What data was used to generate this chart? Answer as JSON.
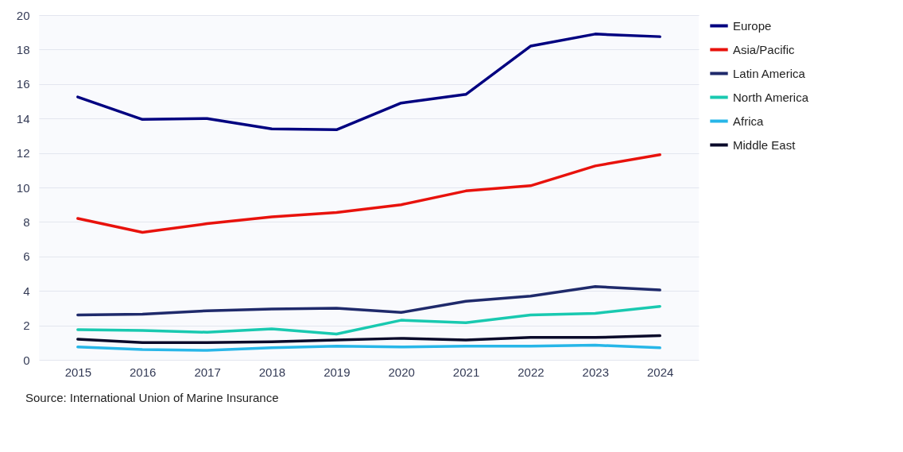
{
  "chart_data": {
    "type": "line",
    "categories": [
      "2015",
      "2016",
      "2017",
      "2018",
      "2019",
      "2020",
      "2021",
      "2022",
      "2023",
      "2024"
    ],
    "series": [
      {
        "name": "Europe",
        "color": "#000080",
        "values": [
          15.25,
          13.95,
          14.0,
          13.4,
          13.35,
          14.9,
          15.4,
          18.2,
          18.9,
          18.75
        ]
      },
      {
        "name": "Asia/Pacific",
        "color": "#e8120c",
        "values": [
          8.2,
          7.4,
          7.9,
          8.3,
          8.55,
          9.0,
          9.8,
          10.1,
          11.25,
          11.9
        ]
      },
      {
        "name": "Latin America",
        "color": "#1f2a6b",
        "values": [
          2.6,
          2.65,
          2.85,
          2.95,
          3.0,
          2.75,
          3.4,
          3.7,
          4.25,
          4.05
        ]
      },
      {
        "name": "North America",
        "color": "#19c9b0",
        "values": [
          1.75,
          1.7,
          1.6,
          1.8,
          1.5,
          2.3,
          2.15,
          2.6,
          2.7,
          3.1
        ]
      },
      {
        "name": "Africa",
        "color": "#27b6e8",
        "values": [
          0.75,
          0.6,
          0.55,
          0.7,
          0.8,
          0.75,
          0.8,
          0.8,
          0.85,
          0.7
        ]
      },
      {
        "name": "Middle East",
        "color": "#0a0a2a",
        "values": [
          1.2,
          1.0,
          1.0,
          1.05,
          1.15,
          1.25,
          1.15,
          1.3,
          1.3,
          1.4
        ]
      }
    ],
    "ylim": [
      0,
      20
    ],
    "yticks": [
      0,
      2,
      4,
      6,
      8,
      10,
      12,
      14,
      16,
      18,
      20
    ],
    "grid": "y",
    "legend": "right",
    "annotations": [
      "Source: International Union of Marine Insurance"
    ]
  }
}
